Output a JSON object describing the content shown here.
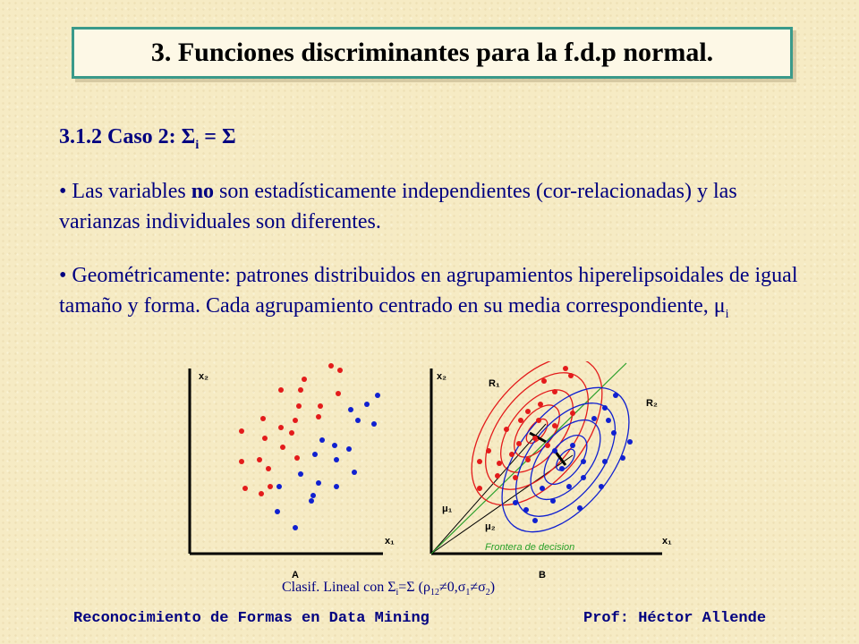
{
  "title": "3. Funciones discriminantes para la f.d.p normal.",
  "heading": {
    "prefix": "3.1.2 Caso 2: ",
    "sigma": "Σ",
    "sub_i": "i",
    "suffix": " = Σ"
  },
  "bullet1": {
    "before": "• Las variables ",
    "bold": "no",
    "after": " son estadísticamente independientes (cor-relacionadas) y las varianzas individuales son diferentes."
  },
  "bullet2": {
    "text": "• Geométricamente: patrones distribuidos en agrupamientos hiperelipsoidales de igual tamaño y forma. Cada agrupamiento centrado en su media correspondiente, ",
    "mu": "μ",
    "sub": "i"
  },
  "figure": {
    "left_plot": {
      "ylabel": "x₂",
      "xlabel": "x₁",
      "label": "A"
    },
    "right_plot": {
      "ylabel": "x₂",
      "xlabel": "x₁",
      "label": "B",
      "region1": "R₁",
      "region2": "R₂",
      "mu1": "μ₁",
      "mu2": "μ₂",
      "boundary_label": "Frontera de decision"
    },
    "colors": {
      "class1": "#e31b1b",
      "class2": "#1020d0",
      "boundary": "#2aa02a"
    }
  },
  "caption": {
    "prefix": "Clasif. Lineal con Σ",
    "sub_i": "i",
    "mid": "=Σ (ρ",
    "sub_12": "12",
    "mid2": "≠0,σ",
    "sub_1": "1",
    "ne": "≠σ",
    "sub_2": "2",
    "end": ")"
  },
  "footer": {
    "left": "Reconocimiento de Formas en Data Mining",
    "right": "Prof: Héctor Allende"
  }
}
